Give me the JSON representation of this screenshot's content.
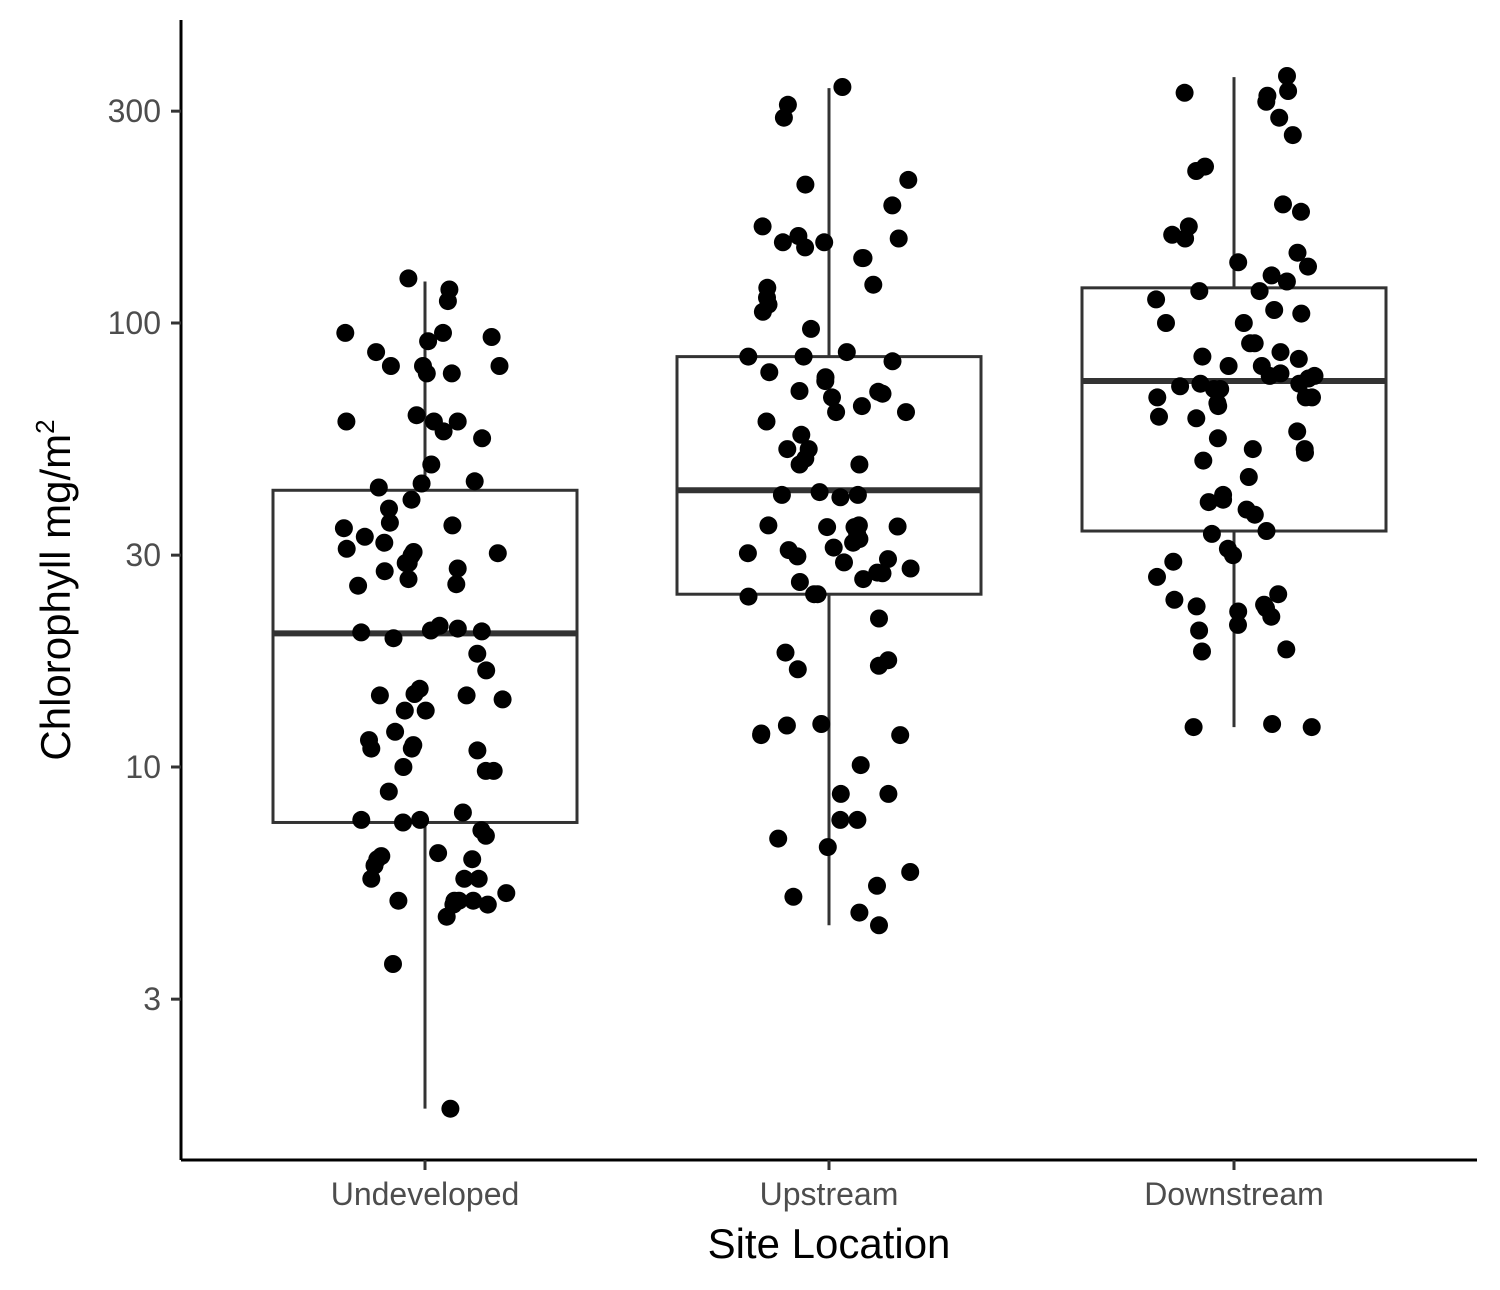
{
  "chart_data": {
    "type": "boxplot",
    "xlabel": "Site Location",
    "ylabel": "Chlorophyll  mg/m",
    "ylabel_superscript": "2",
    "y_scale": "log10",
    "ylim": [
      1.5,
      420
    ],
    "y_ticks": [
      3,
      10,
      30,
      100,
      300
    ],
    "y_tick_labels": [
      "3",
      "10",
      "30",
      "100",
      "300"
    ],
    "grid": false,
    "legend": "none",
    "colors": {
      "box": "#333333",
      "points": "#000000",
      "axis": "#000000",
      "tick_label": "#4d4d4d"
    },
    "categories": [
      "Undeveloped",
      "Upstream",
      "Downstream"
    ],
    "boxes": [
      {
        "category": "Undeveloped",
        "whisker_low": 1.7,
        "q1": 7.5,
        "median": 20,
        "q3": 42,
        "whisker_high": 124
      },
      {
        "category": "Upstream",
        "whisker_low": 4.4,
        "q1": 24.5,
        "median": 42,
        "q3": 84,
        "whisker_high": 338
      },
      {
        "category": "Downstream",
        "whisker_low": 12.3,
        "q1": 34,
        "median": 74,
        "q3": 120,
        "whisker_high": 358
      }
    ],
    "points": [
      {
        "category": "Undeveloped",
        "values": [
          1.7,
          3.6,
          4.6,
          5.2,
          5.0,
          4.9,
          5.6,
          4.9,
          5.0,
          5.6,
          5.6,
          5.0,
          5.0,
          6.0,
          6.4,
          6.3,
          6.2,
          6.2,
          7.0,
          7.2,
          7.6,
          7.6,
          7.9,
          7.5,
          8.8,
          10.0,
          9.8,
          9.8,
          11.0,
          11.2,
          10.9,
          11.0,
          11.5,
          12.0,
          13.4,
          13.4,
          14.2,
          15.0,
          14.5,
          14.5,
          14.6,
          16.5,
          18.0,
          19.5,
          20.3,
          20.2,
          20.5,
          20.1,
          20.8,
          25.6,
          25.8,
          26.5,
          28.0,
          27.6,
          28.8,
          28.8,
          30.0,
          30.3,
          30.5,
          31.0,
          32.0,
          33.0,
          35.0,
          34.5,
          35.5,
          38.2,
          40.0,
          42.6,
          44.0,
          43.5,
          48.0,
          55.0,
          57.0,
          60.0,
          60.0,
          60.0,
          62.0,
          77.0,
          77.0,
          80.0,
          80.0,
          80.0,
          86.0,
          91.0,
          93.0,
          95.0,
          95.0,
          112.0,
          119.0,
          126.0
        ]
      },
      {
        "category": "Upstream",
        "values": [
          4.4,
          4.7,
          5.1,
          5.4,
          5.8,
          6.6,
          6.9,
          7.6,
          7.6,
          8.7,
          8.7,
          10.1,
          11.8,
          11.8,
          11.9,
          12.4,
          12.5,
          16.9,
          16.6,
          17.4,
          18.1,
          21.6,
          24.5,
          24.5,
          24.2,
          26.1,
          26.5,
          27.3,
          27.4,
          28.0,
          28.9,
          29.4,
          29.8,
          30.3,
          30.8,
          31.2,
          32.0,
          32.6,
          33.5,
          34.7,
          34.7,
          34.8,
          35.0,
          35.0,
          40.5,
          41.0,
          41.0,
          41.6,
          48.0,
          48.0,
          49.5,
          52.0,
          52.0,
          56.0,
          60.0,
          63.0,
          63.0,
          65.0,
          68.0,
          69.3,
          70.0,
          70.3,
          74.0,
          75.5,
          77.5,
          82.0,
          84.0,
          84.0,
          86.0,
          97.0,
          106.0,
          110.0,
          114.0,
          120.0,
          122.0,
          140.0,
          140.0,
          148.0,
          152.0,
          152.0,
          155.0,
          157.0,
          165.0,
          184.0,
          205.0,
          210.0,
          290.0,
          310.0,
          340.0
        ]
      },
      {
        "category": "Downstream",
        "values": [
          12.3,
          12.3,
          12.5,
          18.2,
          18.4,
          20.3,
          20.9,
          21.8,
          22.4,
          22.8,
          23.2,
          23.0,
          23.8,
          24.5,
          26.8,
          29.0,
          30.0,
          31.0,
          33.5,
          34.0,
          37.0,
          38.0,
          39.5,
          40.0,
          41.0,
          45.0,
          49.0,
          51.0,
          52.0,
          52.0,
          55.0,
          57.0,
          61.0,
          61.5,
          65.0,
          66.0,
          68.0,
          68.0,
          68.0,
          71.0,
          71.0,
          72.0,
          73.0,
          73.0,
          75.0,
          76.0,
          76.0,
          77.0,
          80.0,
          80.0,
          83.0,
          84.0,
          86.0,
          90.0,
          90.0,
          100.0,
          100.0,
          105.0,
          107.0,
          113.0,
          118.0,
          118.0,
          124.0,
          128.0,
          134.0,
          137.0,
          144.0,
          155.0,
          158.0,
          165.0,
          178.0,
          185.0,
          220.0,
          225.0,
          265.0,
          290.0,
          315.0,
          325.0,
          330.0,
          333.0,
          360.0
        ]
      }
    ]
  }
}
